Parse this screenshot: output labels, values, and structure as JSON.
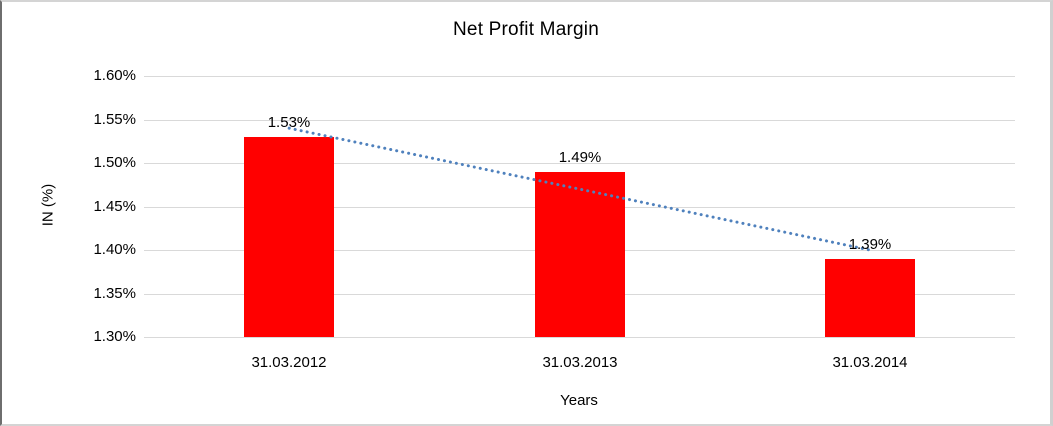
{
  "chart_data": {
    "type": "bar",
    "title": "Net Profit Margin",
    "categories": [
      "31.03.2012",
      "31.03.2013",
      "31.03.2014"
    ],
    "values": [
      1.53,
      1.49,
      1.39
    ],
    "data_labels": [
      "1.53%",
      "1.49%",
      "1.39%"
    ],
    "xlabel": "Years",
    "ylabel": "IN (%)",
    "ylim": [
      1.3,
      1.6
    ],
    "ytick_values": [
      1.6,
      1.55,
      1.5,
      1.45,
      1.4,
      1.35,
      1.3
    ],
    "ytick_labels": [
      "1.60%",
      "1.55%",
      "1.50%",
      "1.45%",
      "1.40%",
      "1.35%",
      "1.30%"
    ],
    "grid": true,
    "legend_position": "none",
    "bar_color": "#ff0000",
    "gridline_color": "#d9d9d9",
    "text_color": "#000000",
    "trendline": {
      "type": "linear",
      "style": "dotted",
      "color": "#4f81bd",
      "start_value": 1.54,
      "end_value": 1.4
    }
  }
}
